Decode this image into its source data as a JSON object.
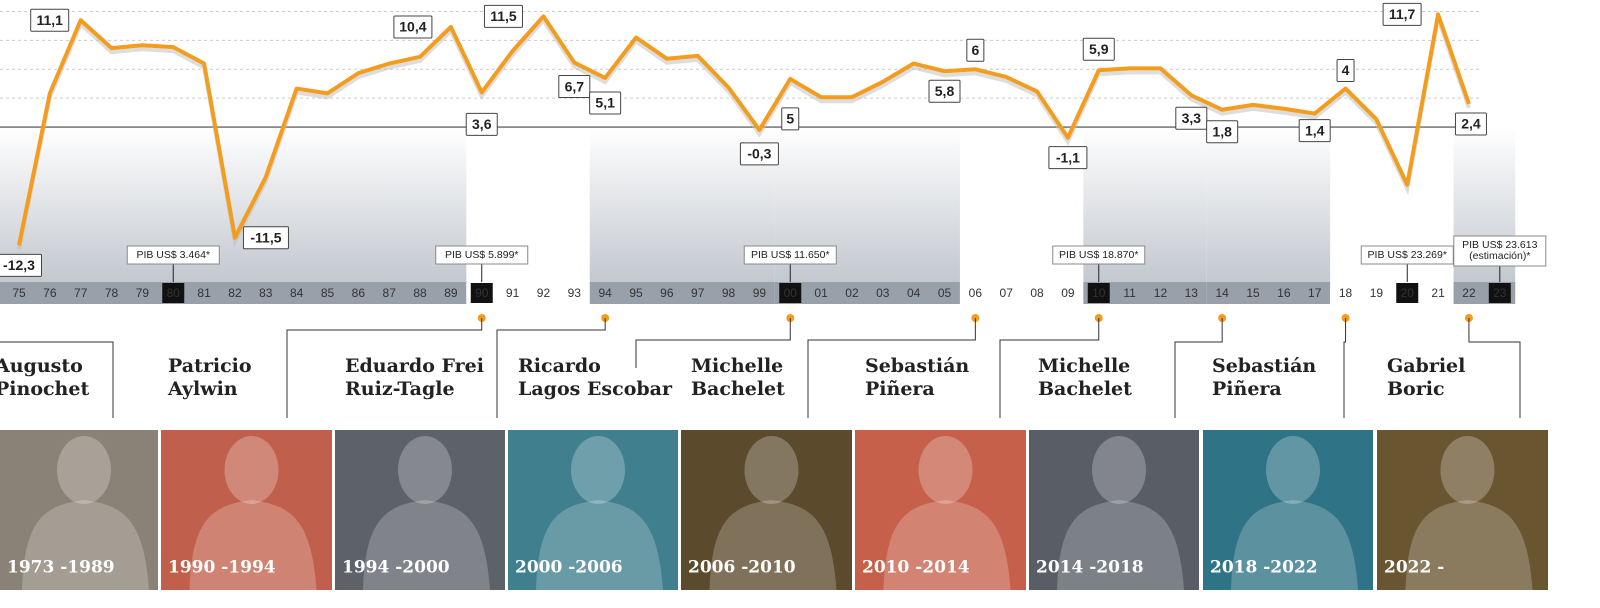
{
  "chart_data": {
    "type": "line",
    "categories": [
      "75",
      "76",
      "77",
      "78",
      "79",
      "80",
      "81",
      "82",
      "83",
      "84",
      "85",
      "86",
      "87",
      "88",
      "89",
      "90",
      "91",
      "92",
      "93",
      "94",
      "95",
      "96",
      "97",
      "98",
      "99",
      "00",
      "01",
      "02",
      "03",
      "04",
      "05",
      "06",
      "07",
      "08",
      "09",
      "10",
      "11",
      "12",
      "13",
      "14",
      "15",
      "16",
      "17",
      "18",
      "19",
      "20",
      "21",
      "22",
      "23"
    ],
    "series": [
      {
        "color": "#f39c1e",
        "values": [
          -12.3,
          3.5,
          11.1,
          8.2,
          8.5,
          8.3,
          6.6,
          -11.5,
          -5.2,
          4.0,
          3.5,
          5.6,
          6.6,
          7.3,
          10.4,
          3.6,
          7.9,
          11.5,
          6.7,
          5.1,
          9.3,
          7.1,
          7.4,
          4.1,
          -0.3,
          5,
          3.1,
          3.1,
          4.7,
          6.6,
          5.8,
          6,
          5.2,
          3.7,
          -1.1,
          5.9,
          6.1,
          6.1,
          3.3,
          1.8,
          2.3,
          1.9,
          1.4,
          4,
          0.8,
          -6.0,
          11.7,
          2.4,
          null
        ],
        "value_labels": [
          "-12,3",
          null,
          "11,1",
          null,
          null,
          null,
          null,
          "-11,5",
          null,
          null,
          null,
          null,
          null,
          null,
          "10,4",
          "3,6",
          null,
          "11,5",
          "6,7",
          "5,1",
          null,
          null,
          null,
          null,
          "-0,3",
          "5",
          null,
          null,
          null,
          null,
          "5,8",
          "6",
          null,
          null,
          "-1,1",
          "5,9",
          null,
          null,
          "3,3",
          "1,8",
          null,
          null,
          "1,4",
          "4",
          null,
          null,
          "11,7",
          "2,4",
          null
        ]
      }
    ],
    "ylim": [
      -16.1,
      13.2
    ],
    "gridlines": [
      3,
      6,
      9,
      12
    ],
    "annotations": [
      {
        "category": "80",
        "text": [
          "PIB US$ 3.464*"
        ]
      },
      {
        "category": "90",
        "text": [
          "PIB US$ 5.899*"
        ]
      },
      {
        "category": "00",
        "text": [
          "PIB US$ 11.650*"
        ]
      },
      {
        "category": "10",
        "text": [
          "PIB US$ 18.870*"
        ]
      },
      {
        "category": "20",
        "text": [
          "PIB US$ 23.269*"
        ]
      },
      {
        "category": "23",
        "text": [
          "PIB US$ 23.613",
          "(estimación)*"
        ]
      }
    ],
    "presidents": [
      {
        "name": [
          "Augusto",
          "Pinochet"
        ],
        "term": "1973 -1989",
        "color": "#8a8276"
      },
      {
        "name": [
          "Patricio",
          "Aylwin"
        ],
        "term": "1990 -1994",
        "color": "#c0604c"
      },
      {
        "name": [
          "Eduardo Frei",
          "Ruiz-Tagle"
        ],
        "term": "1994 -2000",
        "color": "#5d6168"
      },
      {
        "name": [
          "Ricardo",
          "Lagos Escobar"
        ],
        "term": "2000 -2006",
        "color": "#3f7f8e"
      },
      {
        "name": [
          "Michelle",
          "Bachelet"
        ],
        "term": "2006 -2010",
        "color": "#5b4a2c"
      },
      {
        "name": [
          "Sebastián",
          "Piñera"
        ],
        "term": "2010 -2014",
        "color": "#c6604b"
      },
      {
        "name": [
          "Michelle",
          "Bachelet"
        ],
        "term": "2014 -2018",
        "color": "#585d66"
      },
      {
        "name": [
          "Sebastián",
          "Piñera"
        ],
        "term": "2018 -2022",
        "color": "#2f7386"
      },
      {
        "name": [
          "Gabriel",
          "Boric"
        ],
        "term": "2022 -",
        "color": "#6a5531"
      }
    ]
  }
}
